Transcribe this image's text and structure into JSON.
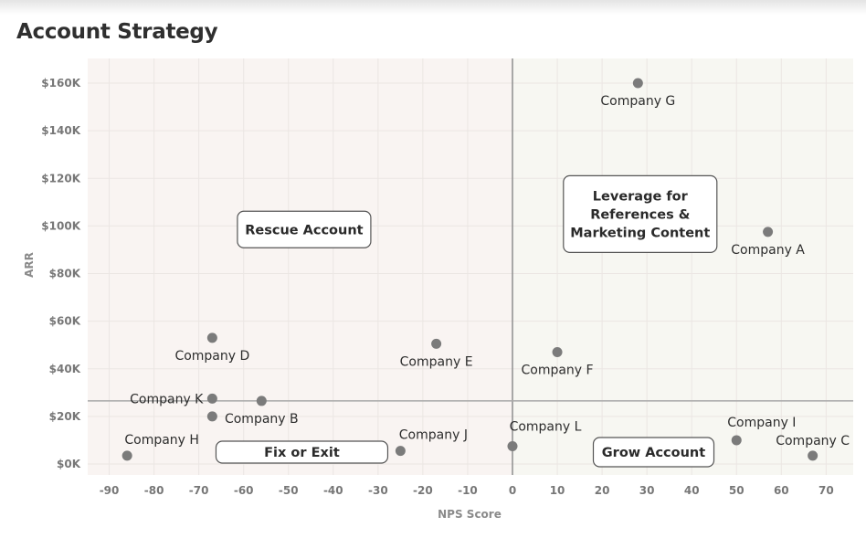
{
  "title": "Account Strategy",
  "chart_data": {
    "type": "scatter",
    "title": "Account Strategy",
    "xlabel": "NPS Score",
    "ylabel": "ARR",
    "xlim": [
      -95,
      76
    ],
    "ylim": [
      -2000,
      170000
    ],
    "x_ticks": [
      -90,
      -80,
      -70,
      -60,
      -50,
      -40,
      -30,
      -20,
      -10,
      0,
      10,
      20,
      30,
      40,
      50,
      60,
      70
    ],
    "x_tick_labels": [
      "-90",
      "-80",
      "-70",
      "-60",
      "-50",
      "-40",
      "-30",
      "-20",
      "-10",
      "0",
      "10",
      "20",
      "30",
      "40",
      "50",
      "60",
      "70"
    ],
    "y_ticks": [
      0,
      20000,
      40000,
      60000,
      80000,
      100000,
      120000,
      140000,
      160000
    ],
    "y_tick_labels": [
      "$0K",
      "$20K",
      "$40K",
      "$60K",
      "$80K",
      "$100K",
      "$120K",
      "$140K",
      "$160K"
    ],
    "reference_lines": {
      "x": 0,
      "y": 26500
    },
    "grid": true,
    "marker_color": "#7b7b7b",
    "points": [
      {
        "label": "Company G",
        "x": 28,
        "y": 160000,
        "label_pos": "below"
      },
      {
        "label": "Company A",
        "x": 57,
        "y": 97500,
        "label_pos": "below"
      },
      {
        "label": "Company D",
        "x": -67,
        "y": 53000,
        "label_pos": "below"
      },
      {
        "label": "Company E",
        "x": -17,
        "y": 50500,
        "label_pos": "below"
      },
      {
        "label": "Company F",
        "x": 10,
        "y": 47000,
        "label_pos": "below"
      },
      {
        "label": "Company K",
        "x": -67,
        "y": 27500,
        "label_pos": "left"
      },
      {
        "label": "Company B",
        "x": -56,
        "y": 26500,
        "label_pos": "below"
      },
      {
        "label": "Company H",
        "x": -86,
        "y": 3500,
        "label_pos": "above-right"
      },
      {
        "label": "Company J",
        "x": -25,
        "y": 5500,
        "label_pos": "above-right"
      },
      {
        "label": "Company L",
        "x": 0,
        "y": 7500,
        "label_pos": "above-right"
      },
      {
        "label": "Company I",
        "x": 50,
        "y": 10000,
        "label_pos": "above-right"
      },
      {
        "label": "Company C",
        "x": 67,
        "y": 3500,
        "label_pos": "above"
      },
      {
        "label": "",
        "x": -67,
        "y": 20000,
        "label_pos": "none"
      }
    ],
    "quadrant_labels": [
      {
        "lines": [
          "Rescue Account"
        ],
        "x": -46.5,
        "y": 98500
      },
      {
        "lines": [
          "Leverage for",
          "References &",
          "Marketing Content"
        ],
        "x": 28.5,
        "y": 105000
      },
      {
        "lines": [
          "Fix or Exit"
        ],
        "x": -47,
        "y": 5000
      },
      {
        "lines": [
          "Grow Account"
        ],
        "x": 31.5,
        "y": 5000
      }
    ]
  }
}
